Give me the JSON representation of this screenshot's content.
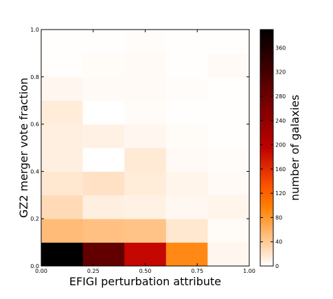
{
  "chart_data": {
    "type": "heatmap",
    "xlabel": "EFIGI perturbation attribute",
    "ylabel": "GZ2 merger vote fraction",
    "xlim": [
      0.0,
      1.0
    ],
    "ylim": [
      0.0,
      1.0
    ],
    "x_bins": [
      0.0,
      0.2,
      0.4,
      0.6,
      0.8,
      1.0
    ],
    "y_bins": [
      0.0,
      0.1,
      0.2,
      0.3,
      0.4,
      0.5,
      0.6,
      0.7,
      0.8,
      0.9,
      1.0
    ],
    "x_ticks": [
      "0.00",
      "0.25",
      "0.50",
      "0.75",
      "1.00"
    ],
    "x_tick_values": [
      0.0,
      0.25,
      0.5,
      0.75,
      1.0
    ],
    "y_ticks": [
      "0.0",
      "0.2",
      "0.4",
      "0.6",
      "0.8",
      "1.0"
    ],
    "y_tick_values": [
      0.0,
      0.2,
      0.4,
      0.6,
      0.8,
      1.0
    ],
    "counts_by_row_from_bottom": [
      [
        390,
        290,
        190,
        90,
        6
      ],
      [
        52,
        48,
        46,
        18,
        3
      ],
      [
        28,
        12,
        10,
        5,
        8
      ],
      [
        18,
        22,
        14,
        8,
        4
      ],
      [
        12,
        0,
        16,
        4,
        2
      ],
      [
        12,
        10,
        6,
        3,
        1
      ],
      [
        14,
        0,
        3,
        1,
        1
      ],
      [
        6,
        4,
        4,
        2,
        1
      ],
      [
        1,
        3,
        4,
        1,
        4
      ],
      [
        1,
        1,
        2,
        1,
        1
      ]
    ],
    "colorbar": {
      "colormap": "gist_heat_r",
      "label": "number of galaxies",
      "min": 0,
      "max": 390,
      "ticks": [
        "0",
        "40",
        "80",
        "120",
        "160",
        "200",
        "240",
        "280",
        "320",
        "360"
      ],
      "tick_values": [
        0,
        40,
        80,
        120,
        160,
        200,
        240,
        280,
        320,
        360
      ]
    },
    "grid": false
  }
}
